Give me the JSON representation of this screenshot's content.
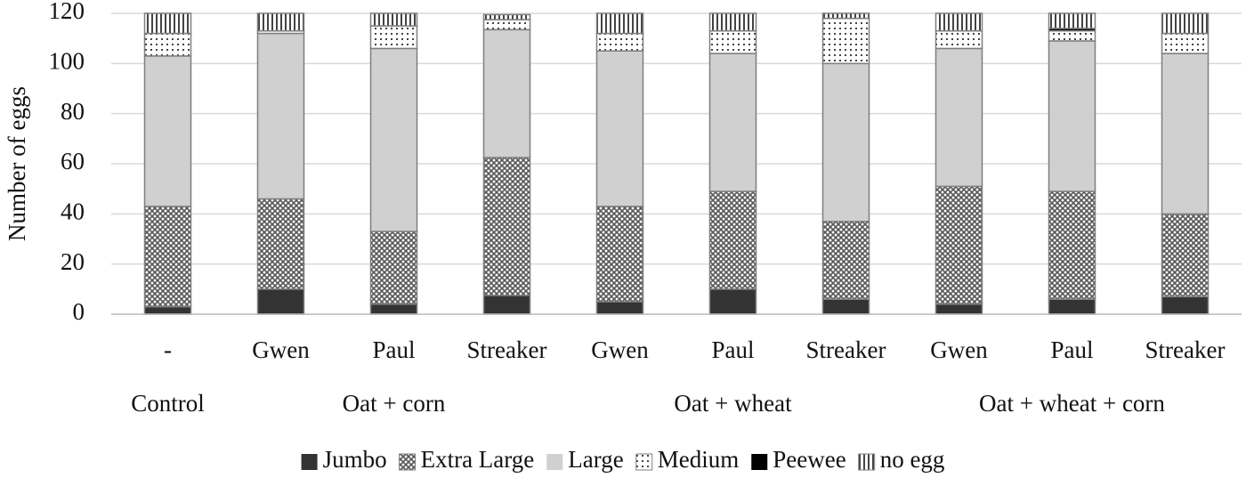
{
  "chart_data": {
    "type": "stacked_bar",
    "y_label": "Number of eggs",
    "groups": [
      {
        "name": "Control",
        "categories": [
          "-"
        ]
      },
      {
        "name": "Oat + corn",
        "categories": [
          "Gwen",
          "Paul",
          "Streaker"
        ]
      },
      {
        "name": "Oat + wheat",
        "categories": [
          "Gwen",
          "Paul",
          "Streaker"
        ]
      },
      {
        "name": "Oat + wheat + corn",
        "categories": [
          "Gwen",
          "Paul",
          "Streaker"
        ]
      }
    ],
    "series": [
      {
        "name": "Jumbo",
        "color": "#333333",
        "values": [
          3,
          10,
          4,
          7.5,
          5,
          10,
          6,
          4,
          6,
          7
        ]
      },
      {
        "name": "Extra Large",
        "color": "#8a8a8a",
        "pattern": "crosshatch",
        "values": [
          40,
          36,
          29,
          55,
          38,
          39,
          31,
          47,
          43,
          33
        ]
      },
      {
        "name": "Large",
        "color": "#d0d0d0",
        "values": [
          60,
          66,
          73,
          51,
          62,
          55,
          63,
          55,
          60,
          64
        ]
      },
      {
        "name": "Medium",
        "color": "#ffffff",
        "pattern": "dots",
        "values": [
          9,
          1,
          9,
          4,
          7,
          9,
          18,
          7,
          4,
          8
        ]
      },
      {
        "name": "Peewee",
        "color": "#000000",
        "values": [
          0,
          0,
          0,
          0,
          0,
          0,
          0,
          0,
          1,
          0
        ]
      },
      {
        "name": "no egg",
        "color": "#ffffff",
        "pattern": "vlines",
        "values": [
          8,
          7,
          5,
          2,
          8,
          7,
          2,
          7,
          6,
          8
        ]
      }
    ],
    "ylim": [
      0,
      120
    ],
    "yticks": [
      0,
      20,
      40,
      60,
      80,
      100,
      120
    ],
    "grid": true
  }
}
